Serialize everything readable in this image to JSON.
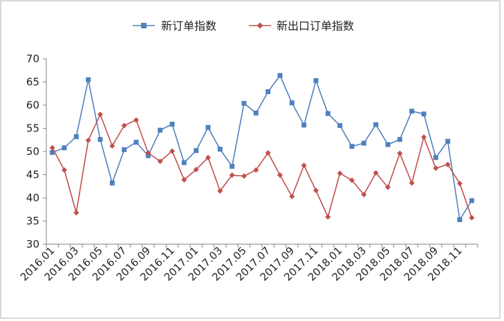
{
  "chart_data": {
    "type": "line",
    "title": "",
    "xlabel": "",
    "ylabel": "",
    "ylim": [
      30,
      70
    ],
    "yticks": [
      30,
      35,
      40,
      45,
      50,
      55,
      60,
      65,
      70
    ],
    "grid": false,
    "legend_position": "top",
    "x": [
      "2016.01",
      "2016.02",
      "2016.03",
      "2016.04",
      "2016.05",
      "2016.06",
      "2016.07",
      "2016.08",
      "2016.09",
      "2016.10",
      "2016.11",
      "2016.12",
      "2017.01",
      "2017.02",
      "2017.03",
      "2017.04",
      "2017.05",
      "2017.06",
      "2017.07",
      "2017.08",
      "2017.09",
      "2017.10",
      "2017.11",
      "2017.12",
      "2018.01",
      "2018.02",
      "2018.03",
      "2018.04",
      "2018.05",
      "2018.06",
      "2018.07",
      "2018.08",
      "2018.09",
      "2018.10",
      "2018.11",
      "2018.12"
    ],
    "xtick_labels": [
      "2016.01",
      "2016.03",
      "2016.05",
      "2016.07",
      "2016.09",
      "2016.11",
      "2017.01",
      "2017.03",
      "2017.05",
      "2017.07",
      "2017.09",
      "2017.11",
      "2018.01",
      "2018.03",
      "2018.05",
      "2018.07",
      "2018.09",
      "2018.11"
    ],
    "series": [
      {
        "name": "新订单指数",
        "color": "#4F81BD",
        "marker": "square",
        "values": [
          49.8,
          50.8,
          53.2,
          65.5,
          52.6,
          43.2,
          50.4,
          52.0,
          49.1,
          54.6,
          55.9,
          47.6,
          50.2,
          55.2,
          50.5,
          46.8,
          60.4,
          58.3,
          62.9,
          66.4,
          60.5,
          55.7,
          65.3,
          58.2,
          55.6,
          51.1,
          51.8,
          55.8,
          51.5,
          52.6,
          58.7,
          58.1,
          48.7,
          52.2,
          35.3,
          39.4
        ]
      },
      {
        "name": "新出口订单指数",
        "color": "#C0504D",
        "marker": "diamond",
        "values": [
          50.8,
          46.0,
          36.8,
          52.4,
          58.0,
          51.2,
          55.6,
          56.8,
          49.7,
          47.9,
          50.1,
          43.9,
          46.1,
          48.7,
          41.5,
          44.9,
          44.7,
          46.0,
          49.7,
          44.9,
          40.3,
          47.0,
          41.6,
          35.9,
          45.3,
          43.8,
          40.7,
          45.4,
          42.3,
          49.6,
          43.2,
          53.1,
          46.4,
          47.2,
          43.1,
          35.7
        ]
      }
    ]
  }
}
